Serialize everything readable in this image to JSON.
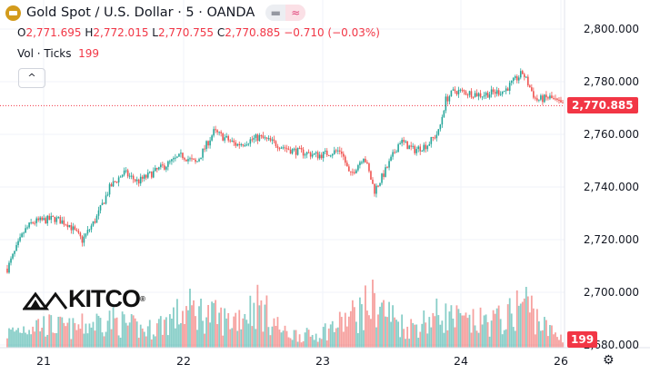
{
  "header": {
    "title": "Gold Spot / U.S. Dollar · 5 · OANDA",
    "pill_left": "▬",
    "pill_right": "≈"
  },
  "ohlc": {
    "o_label": "O",
    "o": "2,771.695",
    "h_label": "H",
    "h": "2,772.015",
    "l_label": "L",
    "l": "2,770.755",
    "c_label": "C",
    "c": "2,770.885",
    "change": "−0.710 (−0.03%)"
  },
  "volume_legend": {
    "label": "Vol · Ticks",
    "value": "199"
  },
  "collapse_icon": "^",
  "logo_text": "KITCO",
  "logo_mark": "®",
  "settings_icon": "⚙",
  "colors": {
    "up": "#26a69a",
    "down": "#ef5350",
    "price_line": "#f23645"
  },
  "chart_data": {
    "type": "candlestick",
    "title": "Gold Spot / U.S. Dollar · 5 · OANDA",
    "ylim": [
      2680,
      2810
    ],
    "y_ticks": [
      "2,800.000",
      "2,780.000",
      "2,760.000",
      "2,740.000",
      "2,720.000",
      "2,700.000",
      "2,680.000"
    ],
    "y_tick_values": [
      2800,
      2780,
      2760,
      2740,
      2720,
      2700,
      2680
    ],
    "x_ticks": [
      "21",
      "22",
      "23",
      "24",
      "26"
    ],
    "last_price": 2770.885,
    "last_price_label": "2,770.885",
    "last_volume_label": "199",
    "price_path": [
      [
        0,
        2709
      ],
      [
        0.03,
        2723
      ],
      [
        0.045,
        2726.6
      ],
      [
        0.085,
        2728
      ],
      [
        0.11,
        2726
      ],
      [
        0.135,
        2719.7
      ],
      [
        0.16,
        2728
      ],
      [
        0.185,
        2740
      ],
      [
        0.21,
        2745.5
      ],
      [
        0.235,
        2742
      ],
      [
        0.275,
        2747
      ],
      [
        0.315,
        2752
      ],
      [
        0.34,
        2749
      ],
      [
        0.372,
        2761
      ],
      [
        0.413,
        2756
      ],
      [
        0.454,
        2759
      ],
      [
        0.511,
        2754
      ],
      [
        0.56,
        2752
      ],
      [
        0.601,
        2754
      ],
      [
        0.617,
        2744
      ],
      [
        0.642,
        2752
      ],
      [
        0.661,
        2738.6
      ],
      [
        0.683,
        2747
      ],
      [
        0.707,
        2757.6
      ],
      [
        0.732,
        2754
      ],
      [
        0.756,
        2756
      ],
      [
        0.777,
        2761
      ],
      [
        0.789,
        2773
      ],
      [
        0.805,
        2776.6
      ],
      [
        0.854,
        2775
      ],
      [
        0.895,
        2776.6
      ],
      [
        0.928,
        2783.4
      ],
      [
        0.952,
        2773
      ],
      [
        0.977,
        2774
      ],
      [
        1.0,
        2770.9
      ]
    ],
    "volume_profile": [
      [
        0,
        0.3
      ],
      [
        0.05,
        0.5
      ],
      [
        0.12,
        0.4
      ],
      [
        0.18,
        0.6
      ],
      [
        0.25,
        0.35
      ],
      [
        0.33,
        0.8
      ],
      [
        0.4,
        0.55
      ],
      [
        0.45,
        0.9
      ],
      [
        0.5,
        0.3
      ],
      [
        0.55,
        0.25
      ],
      [
        0.6,
        0.5
      ],
      [
        0.66,
        0.95
      ],
      [
        0.72,
        0.4
      ],
      [
        0.78,
        0.7
      ],
      [
        0.83,
        0.5
      ],
      [
        0.9,
        0.6
      ],
      [
        0.93,
        1.0
      ],
      [
        0.97,
        0.4
      ],
      [
        1.0,
        0.2
      ]
    ]
  }
}
